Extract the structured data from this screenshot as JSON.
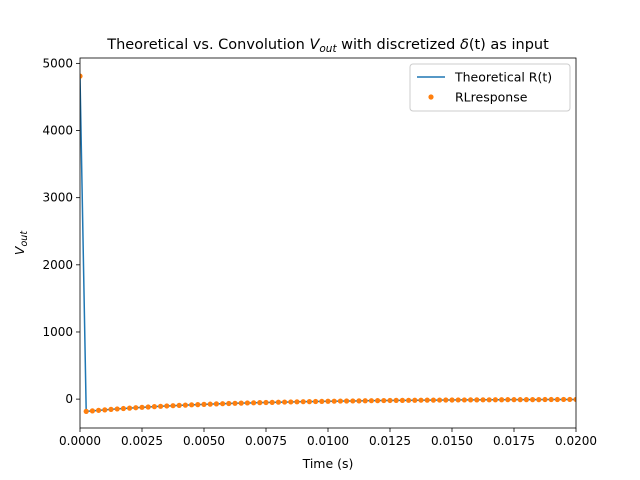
{
  "chart_data": {
    "type": "line",
    "title_parts": {
      "prefix": "Theoretical vs. Convolution ",
      "v": "V",
      "sub": "out",
      "middle": " with discretized ",
      "delta": "δ",
      "suffix": "(t) as input"
    },
    "xlabel": "Time (s)",
    "ylabel_parts": {
      "v": "V",
      "sub": "out"
    },
    "xlim": [
      0,
      0.02
    ],
    "ylim": [
      -430,
      5080
    ],
    "xticks": [
      0,
      0.0025,
      0.005,
      0.0075,
      0.01,
      0.0125,
      0.015,
      0.0175,
      0.02
    ],
    "xtick_labels": [
      "0.0000",
      "0.0025",
      "0.0050",
      "0.0075",
      "0.0100",
      "0.0125",
      "0.0150",
      "0.0175",
      "0.0200"
    ],
    "yticks": [
      0,
      1000,
      2000,
      3000,
      4000,
      5000
    ],
    "ytick_labels": [
      "0",
      "1000",
      "2000",
      "3000",
      "4000",
      "5000"
    ],
    "grid": false,
    "legend_position": "upper right",
    "legend": [
      "Theoretical R(t)",
      "RLresponse"
    ],
    "colors": {
      "theoretical": "#1f77b4",
      "rl": "#ff7f0e"
    },
    "series": [
      {
        "name": "Theoretical R(t)",
        "style": "line",
        "x": [
          0,
          0.00025,
          0.0005,
          0.00075,
          0.001,
          0.00125,
          0.0015,
          0.00175,
          0.002,
          0.00225,
          0.0025,
          0.00275,
          0.003,
          0.00325,
          0.0035,
          0.00375,
          0.004,
          0.00425,
          0.0045,
          0.00475,
          0.005,
          0.00525,
          0.0055,
          0.00575,
          0.006,
          0.00625,
          0.0065,
          0.00675,
          0.007,
          0.00725,
          0.0075,
          0.00775,
          0.008,
          0.00825,
          0.0085,
          0.00875,
          0.009,
          0.00925,
          0.0095,
          0.00975,
          0.01,
          0.01025,
          0.0105,
          0.01075,
          0.011,
          0.01125,
          0.0115,
          0.01175,
          0.012,
          0.01225,
          0.0125,
          0.01275,
          0.013,
          0.01325,
          0.0135,
          0.01375,
          0.014,
          0.01425,
          0.0145,
          0.01475,
          0.015,
          0.01525,
          0.0155,
          0.01575,
          0.016,
          0.01625,
          0.0165,
          0.01675,
          0.017,
          0.01725,
          0.0175,
          0.01775,
          0.018,
          0.01825,
          0.0185,
          0.01875,
          0.019,
          0.01925,
          0.0195,
          0.01975,
          0.02
        ],
        "y": [
          4810,
          -182,
          -175,
          -167,
          -160,
          -153,
          -146,
          -140,
          -134,
          -128,
          -122,
          -117,
          -112,
          -107,
          -102,
          -98,
          -93,
          -89,
          -85,
          -82,
          -78,
          -75,
          -71,
          -68,
          -65,
          -62,
          -60,
          -57,
          -55,
          -52,
          -50,
          -48,
          -46,
          -44,
          -42,
          -40,
          -38,
          -37,
          -35,
          -34,
          -32,
          -31,
          -29,
          -28,
          -27,
          -26,
          -24,
          -23,
          -22,
          -21,
          -20,
          -19,
          -19,
          -18,
          -17,
          -16,
          -15,
          -15,
          -14,
          -13,
          -13,
          -12,
          -12,
          -11,
          -11,
          -10,
          -10,
          -9,
          -9,
          -8,
          -8,
          -8,
          -7,
          -7,
          -7,
          -6,
          -6,
          -6,
          -5,
          -5,
          -5
        ]
      },
      {
        "name": "RLresponse",
        "style": "markers",
        "x": [
          0,
          0.00025,
          0.0005,
          0.00075,
          0.001,
          0.00125,
          0.0015,
          0.00175,
          0.002,
          0.00225,
          0.0025,
          0.00275,
          0.003,
          0.00325,
          0.0035,
          0.00375,
          0.004,
          0.00425,
          0.0045,
          0.00475,
          0.005,
          0.00525,
          0.0055,
          0.00575,
          0.006,
          0.00625,
          0.0065,
          0.00675,
          0.007,
          0.00725,
          0.0075,
          0.00775,
          0.008,
          0.00825,
          0.0085,
          0.00875,
          0.009,
          0.00925,
          0.0095,
          0.00975,
          0.01,
          0.01025,
          0.0105,
          0.01075,
          0.011,
          0.01125,
          0.0115,
          0.01175,
          0.012,
          0.01225,
          0.0125,
          0.01275,
          0.013,
          0.01325,
          0.0135,
          0.01375,
          0.014,
          0.01425,
          0.0145,
          0.01475,
          0.015,
          0.01525,
          0.0155,
          0.01575,
          0.016,
          0.01625,
          0.0165,
          0.01675,
          0.017,
          0.01725,
          0.0175,
          0.01775,
          0.018,
          0.01825,
          0.0185,
          0.01875,
          0.019,
          0.01925,
          0.0195,
          0.01975,
          0.02
        ],
        "y": [
          4810,
          -182,
          -175,
          -167,
          -160,
          -153,
          -146,
          -140,
          -134,
          -128,
          -122,
          -117,
          -112,
          -107,
          -102,
          -98,
          -93,
          -89,
          -85,
          -82,
          -78,
          -75,
          -71,
          -68,
          -65,
          -62,
          -60,
          -57,
          -55,
          -52,
          -50,
          -48,
          -46,
          -44,
          -42,
          -40,
          -38,
          -37,
          -35,
          -34,
          -32,
          -31,
          -29,
          -28,
          -27,
          -26,
          -24,
          -23,
          -22,
          -21,
          -20,
          -19,
          -19,
          -18,
          -17,
          -16,
          -15,
          -15,
          -14,
          -13,
          -13,
          -12,
          -12,
          -11,
          -11,
          -10,
          -10,
          -9,
          -9,
          -8,
          -8,
          -8,
          -7,
          -7,
          -7,
          -6,
          -6,
          -6,
          -5,
          -5,
          -5
        ]
      }
    ]
  }
}
